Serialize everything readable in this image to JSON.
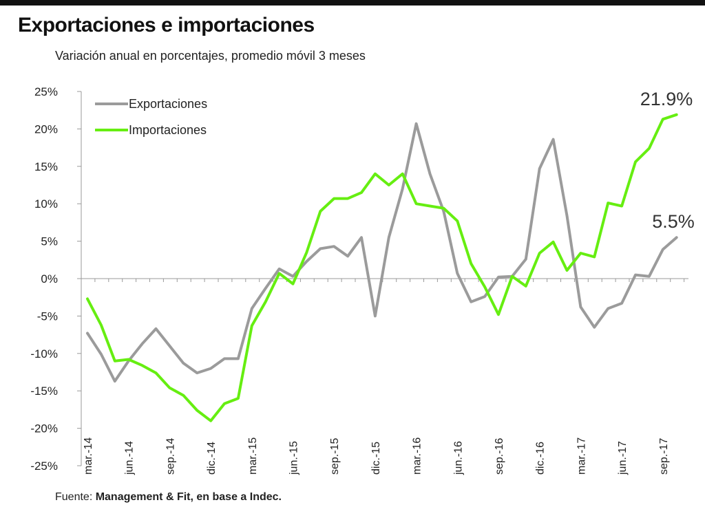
{
  "chart_data": {
    "type": "line",
    "title": "Exportaciones e importaciones",
    "subtitle": "Variación anual en porcentajes, promedio móvil 3 meses",
    "ylim": [
      -25,
      25
    ],
    "y_ticks": [
      25,
      20,
      15,
      10,
      5,
      0,
      -5,
      -10,
      -15,
      -20,
      -25
    ],
    "y_tick_labels": [
      "25%",
      "20%",
      "15%",
      "10%",
      "5%",
      "0%",
      "-5%",
      "-10%",
      "-15%",
      "-20%",
      "-25%"
    ],
    "x_tick_labels": [
      "mar.-14",
      "jun.-14",
      "sep.-14",
      "dic.-14",
      "mar.-15",
      "jun.-15",
      "sep.-15",
      "dic.-15",
      "mar.-16",
      "jun.-16",
      "sep.-16",
      "dic.-16",
      "mar.-17",
      "jun.-17",
      "sep.-17"
    ],
    "x_tick_step": 3,
    "legend_position": "top-left",
    "grid": false,
    "series": [
      {
        "name": "Exportaciones",
        "color": "#9b9b9b",
        "end_label": "5.5%",
        "values": [
          -7.3,
          -10.1,
          -13.7,
          -11.0,
          -8.7,
          -6.7,
          -9.0,
          -11.3,
          -12.6,
          -12.0,
          -10.7,
          -10.7,
          -4.0,
          -1.3,
          1.3,
          0.3,
          2.3,
          4.0,
          4.3,
          3.0,
          5.5,
          -5.0,
          5.5,
          12.0,
          20.7,
          14.0,
          9.0,
          0.7,
          -3.1,
          -2.4,
          0.2,
          0.3,
          2.6,
          14.7,
          18.6,
          8.4,
          -3.8,
          -6.5,
          -4.0,
          -3.3,
          0.5,
          0.3,
          3.9,
          5.5
        ]
      },
      {
        "name": "Importaciones",
        "color": "#66ee11",
        "end_label": "21.9%",
        "values": [
          -2.7,
          -6.2,
          -11.0,
          -10.8,
          -11.6,
          -12.6,
          -14.6,
          -15.6,
          -17.6,
          -19.0,
          -16.7,
          -16.0,
          -6.3,
          -3.1,
          0.7,
          -0.7,
          3.5,
          9.0,
          10.7,
          10.7,
          11.5,
          14.0,
          12.5,
          14.0,
          10.0,
          9.7,
          9.4,
          7.7,
          2.0,
          -1.1,
          -4.8,
          0.3,
          -1.0,
          3.4,
          4.9,
          1.1,
          3.4,
          2.9,
          10.1,
          9.7,
          15.6,
          17.4,
          21.3,
          21.9
        ]
      }
    ]
  },
  "source": {
    "prefix": "Fuente: ",
    "text": "Management & Fit, en base a Indec."
  }
}
